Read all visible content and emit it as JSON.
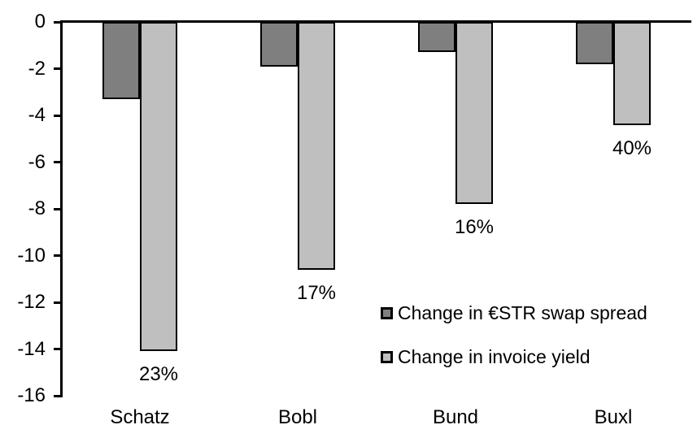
{
  "chart_data": {
    "type": "bar",
    "title": "",
    "xlabel": "",
    "ylabel": "",
    "categories": [
      "Schatz",
      "Bobl",
      "Bund",
      "Buxl"
    ],
    "series": [
      {
        "name": "Change in €STR swap spread",
        "color": "#7F7F7F",
        "values": [
          -3.3,
          -1.9,
          -1.3,
          -1.8
        ]
      },
      {
        "name": "Change in invoice yield",
        "color": "#BFBFBF",
        "values": [
          -14.1,
          -10.6,
          -7.8,
          -4.4
        ],
        "point_labels": [
          "23%",
          "17%",
          "16%",
          "40%"
        ]
      }
    ],
    "yticks": [
      0,
      -2,
      -4,
      -6,
      -8,
      -10,
      -12,
      -14,
      -16
    ],
    "ylim": [
      -16,
      0
    ],
    "grid": false,
    "legend_position": "inside-right",
    "background_color": "#FFFFFF",
    "text_color": "#000000",
    "axis_color": "#000000",
    "bar_border_color": "#000000"
  }
}
